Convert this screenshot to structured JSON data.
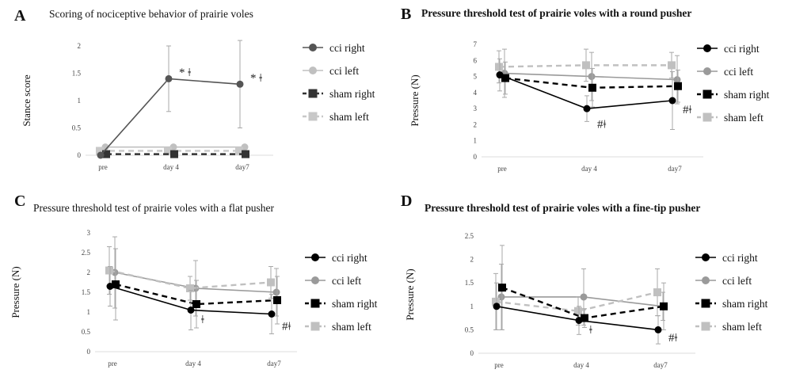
{
  "colors": {
    "cci_right": "#000000",
    "cci_left": "#9a9a9a",
    "sham_right": "#000000",
    "sham_left": "#b8b8b8",
    "panelA_cci_right": "#555555"
  },
  "chart_data": [
    {
      "id": "A",
      "letter": "A",
      "type": "line",
      "title": "Scoring of nociceptive behavior of prairie voles",
      "ylabel": "Stance score",
      "xlabel": "",
      "categories": [
        "pre",
        "day 4",
        "day7"
      ],
      "ylim": [
        0,
        2
      ],
      "yticks": [
        0,
        0.5,
        1,
        1.5,
        2
      ],
      "ytick_labels": [
        "0",
        "0.5",
        "1",
        "1.5",
        "2"
      ],
      "legend_position": "right",
      "series": [
        {
          "name": "cci right",
          "values": [
            0,
            1.4,
            1.3
          ],
          "err": [
            0,
            0.6,
            0.8
          ],
          "color": "#555555",
          "dash": false,
          "marker": "circle"
        },
        {
          "name": "cci left",
          "values": [
            0.15,
            0.15,
            0.15
          ],
          "err": [
            0,
            0,
            0
          ],
          "color": "#c0c0c0",
          "dash": false,
          "marker": "circle"
        },
        {
          "name": "sham right",
          "values": [
            0.02,
            0.02,
            0.02
          ],
          "err": [
            0,
            0,
            0
          ],
          "color": "#333333",
          "dash": true,
          "marker": "square"
        },
        {
          "name": "sham left",
          "values": [
            0.08,
            0.08,
            0.08
          ],
          "err": [
            0,
            0,
            0
          ],
          "color": "#c8c8c8",
          "dash": true,
          "marker": "square"
        }
      ],
      "annotations": [
        {
          "category": "day 4",
          "y": 1.45,
          "text": "* ǂ"
        },
        {
          "category": "day7",
          "y": 1.35,
          "text": "* ǂ"
        }
      ]
    },
    {
      "id": "B",
      "letter": "B",
      "type": "line",
      "title": "Pressure threshold test of prairie voles with a round pusher",
      "ylabel": "Pressure (N)",
      "xlabel": "",
      "categories": [
        "pre",
        "day 4",
        "day7"
      ],
      "ylim": [
        0,
        7
      ],
      "yticks": [
        0,
        1,
        2,
        3,
        4,
        5,
        6,
        7
      ],
      "ytick_labels": [
        "0",
        "1",
        "2",
        "3",
        "4",
        "5",
        "6",
        "7"
      ],
      "legend_position": "right",
      "series": [
        {
          "name": "cci right",
          "values": [
            5.1,
            3.0,
            3.5
          ],
          "err": [
            1.0,
            0.8,
            1.8
          ],
          "color": "#000000",
          "dash": false,
          "marker": "circle"
        },
        {
          "name": "cci left",
          "values": [
            5.2,
            5.0,
            4.8
          ],
          "err": [
            1.5,
            1.5,
            1.5
          ],
          "color": "#9a9a9a",
          "dash": false,
          "marker": "circle"
        },
        {
          "name": "sham right",
          "values": [
            4.9,
            4.3,
            4.4
          ],
          "err": [
            1.0,
            1.2,
            1.0
          ],
          "color": "#000000",
          "dash": true,
          "marker": "square"
        },
        {
          "name": "sham left",
          "values": [
            5.6,
            5.7,
            5.7
          ],
          "err": [
            1.0,
            1.0,
            0.8
          ],
          "color": "#c0c0c0",
          "dash": true,
          "marker": "square"
        }
      ],
      "annotations": [
        {
          "category": "day 4",
          "y": 1.8,
          "text": "#ǂ"
        },
        {
          "category": "day7",
          "y": 2.7,
          "text": "#ǂ"
        }
      ]
    },
    {
      "id": "C",
      "letter": "C",
      "type": "line",
      "title": "Pressure threshold test of prairie voles with a flat pusher",
      "ylabel": "Pressure (N)",
      "xlabel": "",
      "categories": [
        "pre",
        "day 4",
        "day7"
      ],
      "ylim": [
        0,
        3
      ],
      "yticks": [
        0,
        0.5,
        1,
        1.5,
        2,
        2.5,
        3
      ],
      "ytick_labels": [
        "0",
        "0.5",
        "1",
        "1.5",
        "2",
        "2.5",
        "3"
      ],
      "legend_position": "right",
      "series": [
        {
          "name": "cci right",
          "values": [
            1.65,
            1.05,
            0.95
          ],
          "err": [
            0.5,
            0.5,
            0.5
          ],
          "color": "#000000",
          "dash": false,
          "marker": "circle"
        },
        {
          "name": "cci left",
          "values": [
            2.0,
            1.6,
            1.5
          ],
          "err": [
            0.9,
            0.7,
            0.6
          ],
          "color": "#9a9a9a",
          "dash": false,
          "marker": "circle"
        },
        {
          "name": "sham right",
          "values": [
            1.7,
            1.2,
            1.3
          ],
          "err": [
            0.9,
            0.6,
            0.6
          ],
          "color": "#000000",
          "dash": true,
          "marker": "square"
        },
        {
          "name": "sham left",
          "values": [
            2.05,
            1.6,
            1.75
          ],
          "err": [
            0.6,
            0.3,
            0.4
          ],
          "color": "#c0c0c0",
          "dash": true,
          "marker": "square"
        }
      ],
      "annotations": [
        {
          "category": "day 4",
          "y": 0.72,
          "text": "ǂ"
        },
        {
          "category": "day7",
          "y": 0.55,
          "text": "#ǂ"
        }
      ]
    },
    {
      "id": "D",
      "letter": "D",
      "type": "line",
      "title": "Pressure threshold test of prairie voles with a fine-tip pusher",
      "ylabel": "Pressure (N)",
      "xlabel": "",
      "categories": [
        "pre",
        "day 4",
        "day7"
      ],
      "ylim": [
        0,
        2.5
      ],
      "yticks": [
        0,
        0.5,
        1,
        1.5,
        2,
        2.5
      ],
      "ytick_labels": [
        "0",
        "0.5",
        "1",
        "1.5",
        "2",
        "2.5"
      ],
      "legend_position": "right",
      "series": [
        {
          "name": "cci right",
          "values": [
            1.0,
            0.7,
            0.5
          ],
          "err": [
            0.5,
            0.3,
            0.3
          ],
          "color": "#000000",
          "dash": false,
          "marker": "circle"
        },
        {
          "name": "cci left",
          "values": [
            1.2,
            1.2,
            1.0
          ],
          "err": [
            0.7,
            0.6,
            0.3
          ],
          "color": "#9a9a9a",
          "dash": false,
          "marker": "circle"
        },
        {
          "name": "sham right",
          "values": [
            1.4,
            0.75,
            1.0
          ],
          "err": [
            0.9,
            0.2,
            0.5
          ],
          "color": "#000000",
          "dash": true,
          "marker": "square"
        },
        {
          "name": "sham left",
          "values": [
            1.1,
            0.9,
            1.3
          ],
          "err": [
            0.6,
            0.3,
            0.5
          ],
          "color": "#c0c0c0",
          "dash": true,
          "marker": "square"
        }
      ],
      "annotations": [
        {
          "category": "day 4",
          "y": 0.42,
          "text": "ǂ"
        },
        {
          "category": "day7",
          "y": 0.25,
          "text": "#ǂ"
        }
      ]
    }
  ]
}
